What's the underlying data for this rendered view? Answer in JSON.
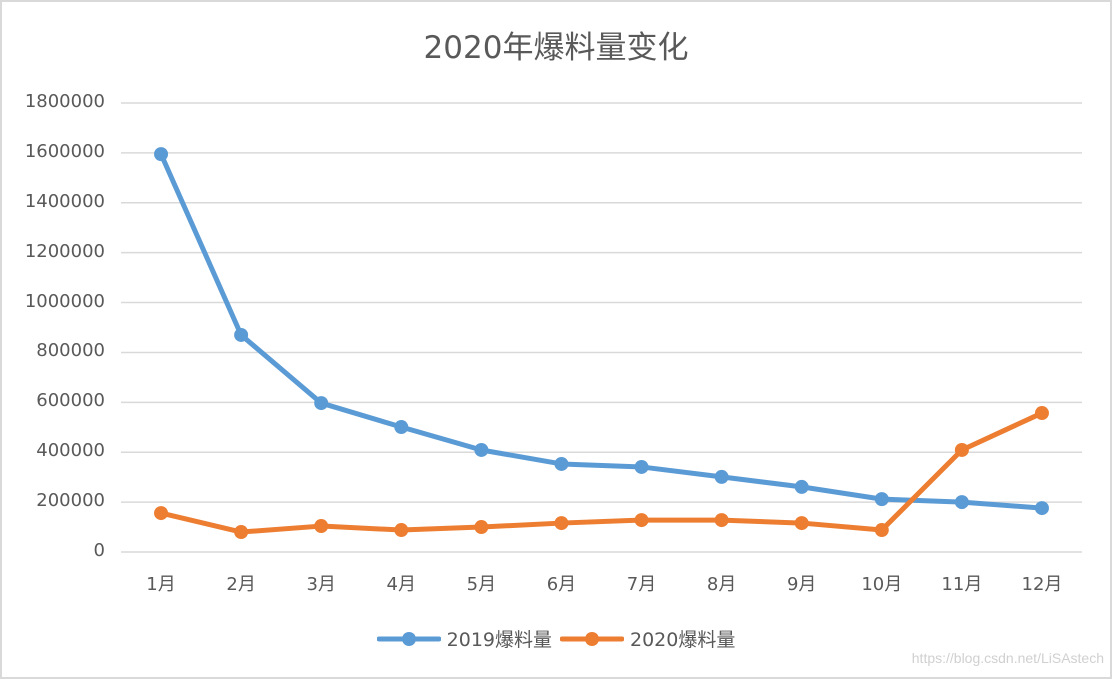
{
  "chart_data": {
    "type": "line",
    "title": "2020年爆料量变化",
    "xlabel": "",
    "ylabel": "",
    "categories": [
      "1月",
      "2月",
      "3月",
      "4月",
      "5月",
      "6月",
      "7月",
      "8月",
      "9月",
      "10月",
      "11月",
      "12月"
    ],
    "series": [
      {
        "name": "2019爆料量",
        "color": "#5b9bd5",
        "values": [
          1595000,
          870000,
          597000,
          501000,
          409000,
          353000,
          341000,
          301000,
          261000,
          212000,
          200000,
          176000
        ]
      },
      {
        "name": "2020爆料量",
        "color": "#ed7d31",
        "values": [
          156000,
          80000,
          104000,
          88000,
          100000,
          116000,
          128000,
          128000,
          116000,
          88000,
          409000,
          557000
        ]
      }
    ],
    "ylim": [
      0,
      1800000
    ],
    "yticks": [
      "0",
      "200000",
      "400000",
      "600000",
      "800000",
      "1000000",
      "1200000",
      "1400000",
      "1600000",
      "1800000"
    ],
    "grid": true,
    "legend_position": "bottom"
  },
  "watermark": "https://blog.csdn.net/LiSAstech"
}
